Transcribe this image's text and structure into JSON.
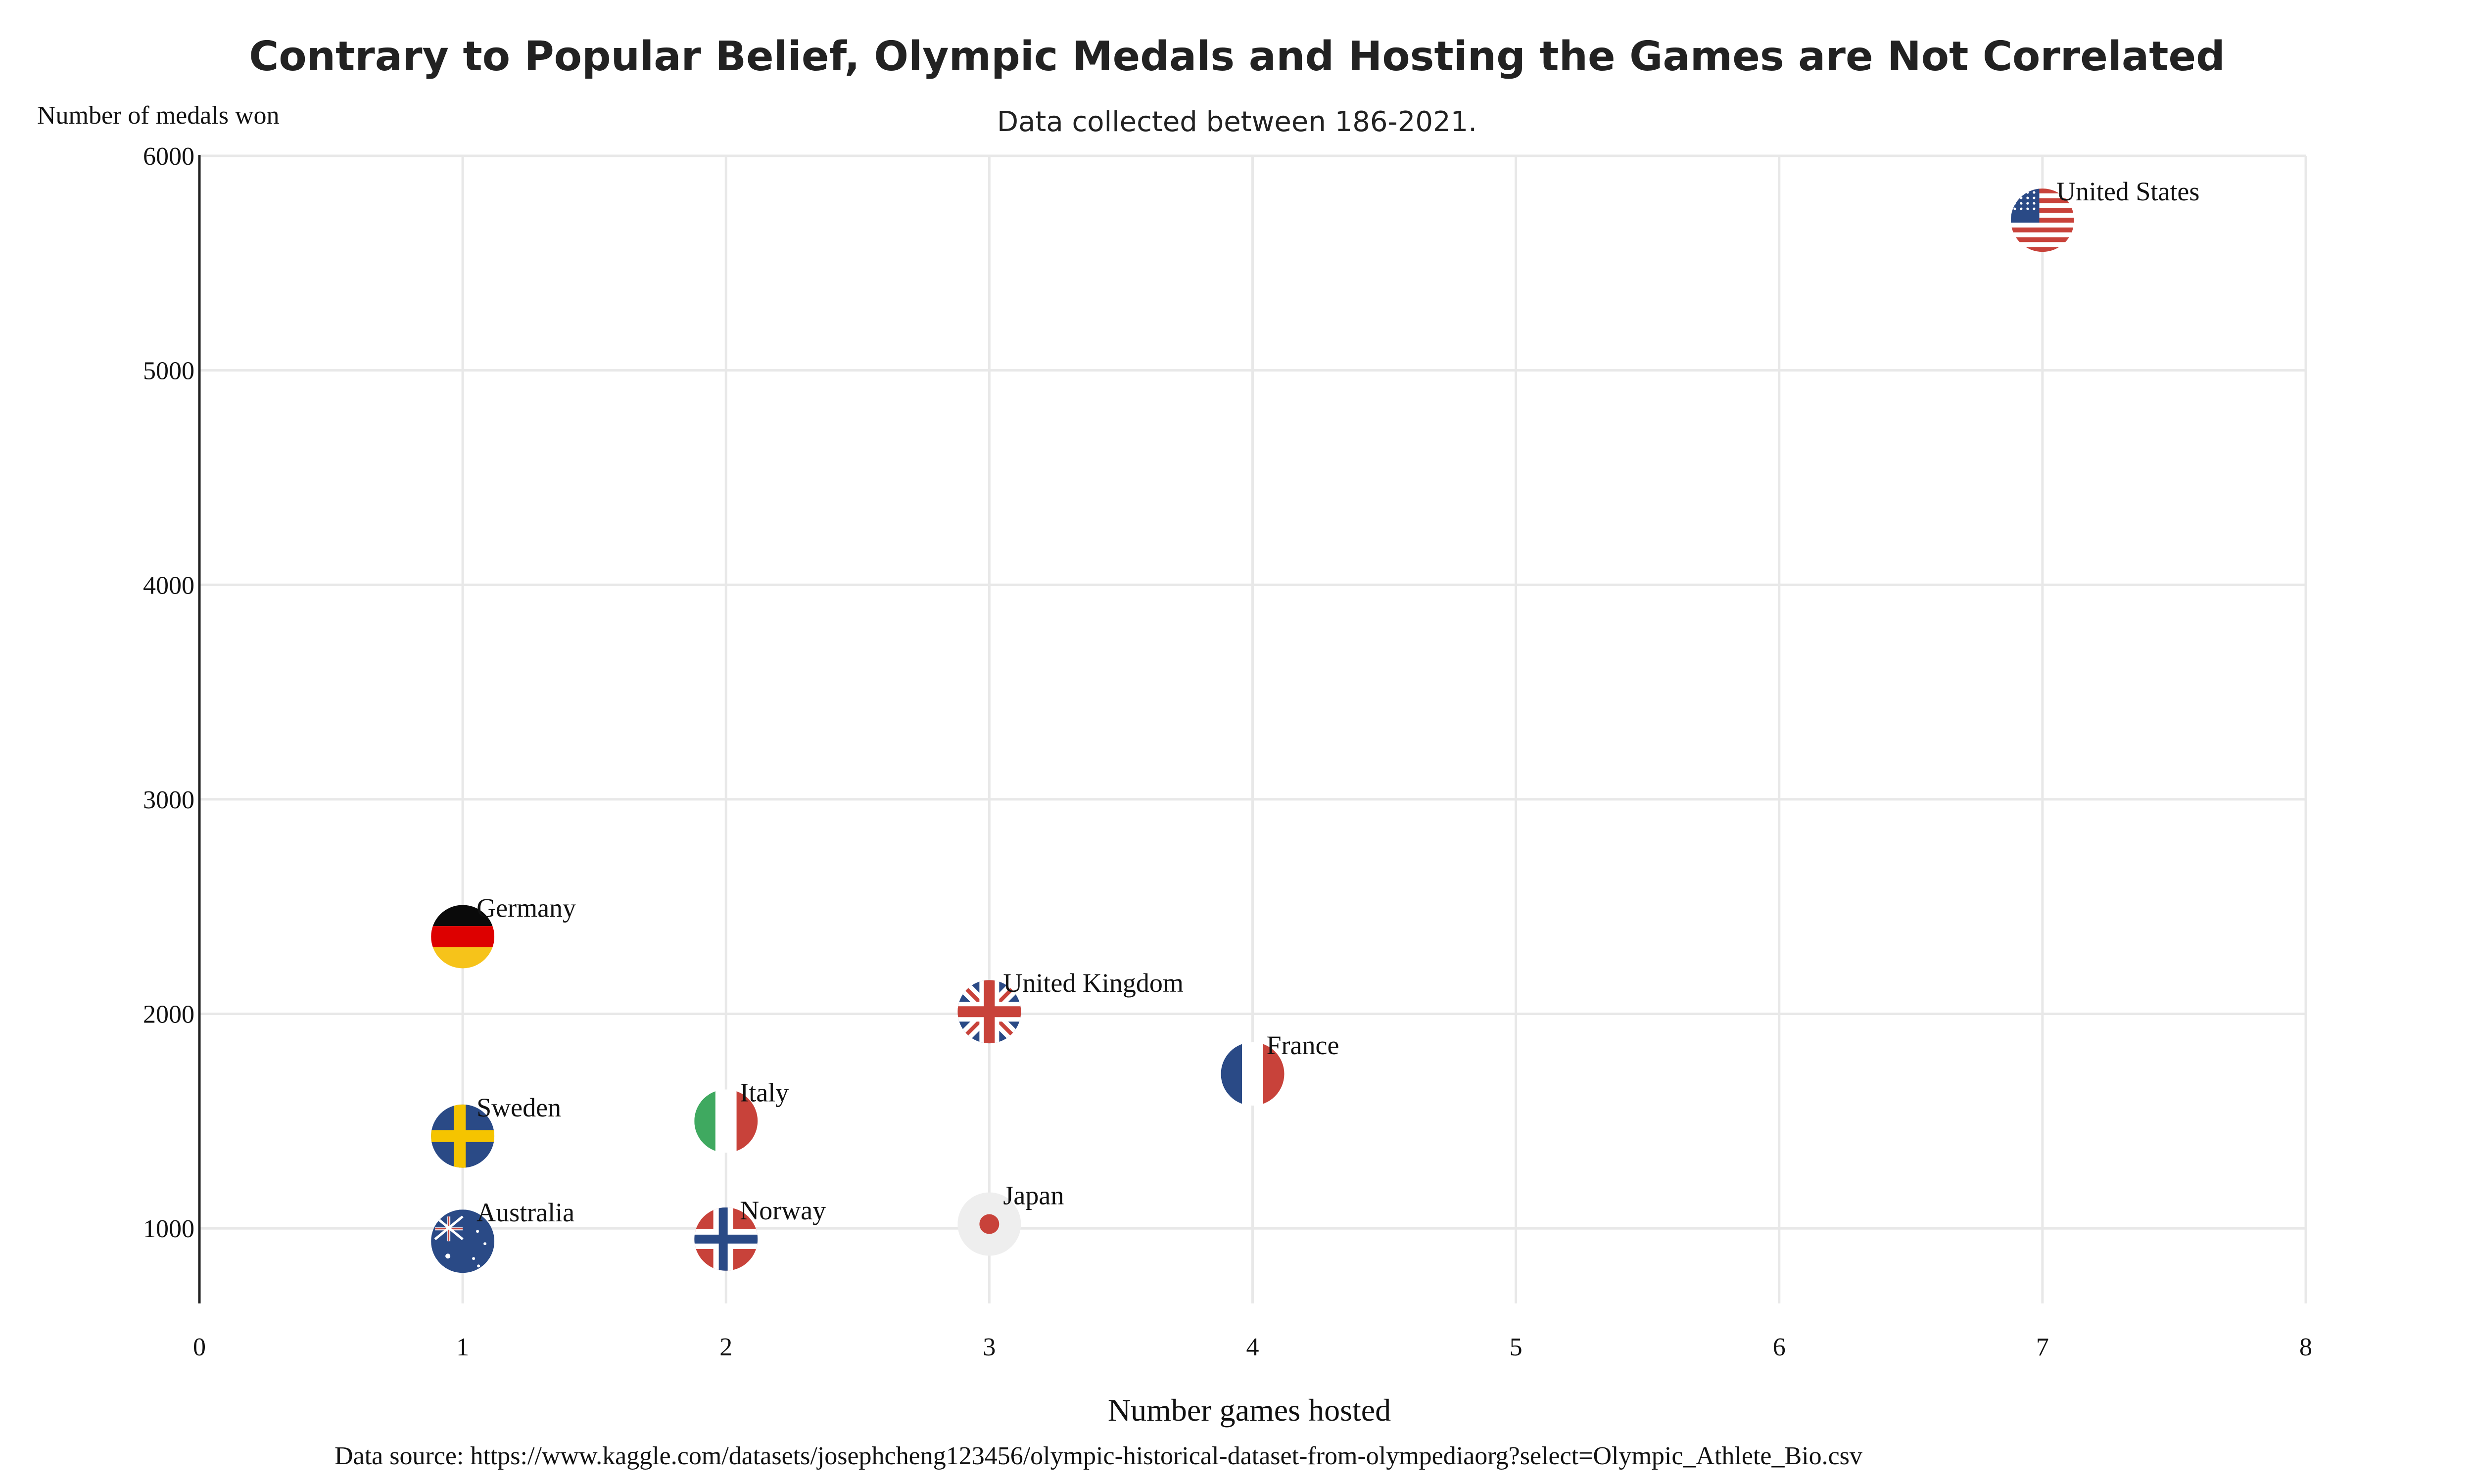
{
  "chart_data": {
    "type": "scatter",
    "title": "Contrary to Popular Belief, Olympic Medals and Hosting the Games are Not Correlated",
    "subtitle": "Data collected between 186-2021.",
    "xlabel": "Number games hosted",
    "ylabel": "Number of medals won",
    "source": "Data source: https://www.kaggle.com/datasets/josephcheng123456/olympic-historical-dataset-from-olympediaorg?select=Olympic_Athlete_Bio.csv",
    "xlim": [
      0,
      8
    ],
    "ylim": [
      650,
      6000
    ],
    "x_ticks": [
      0,
      1,
      2,
      3,
      4,
      5,
      6,
      7,
      8
    ],
    "y_ticks": [
      1000,
      2000,
      3000,
      4000,
      5000,
      6000
    ],
    "grid": true,
    "points": [
      {
        "label": "United States",
        "x": 7,
        "y": 5700,
        "marker": "us-flag-icon"
      },
      {
        "label": "Germany",
        "x": 1,
        "y": 2360,
        "marker": "germany-flag-icon"
      },
      {
        "label": "United Kingdom",
        "x": 3,
        "y": 2010,
        "marker": "uk-flag-icon"
      },
      {
        "label": "France",
        "x": 4,
        "y": 1720,
        "marker": "france-flag-icon"
      },
      {
        "label": "Italy",
        "x": 2,
        "y": 1500,
        "marker": "italy-flag-icon"
      },
      {
        "label": "Sweden",
        "x": 1,
        "y": 1430,
        "marker": "sweden-flag-icon"
      },
      {
        "label": "Japan",
        "x": 3,
        "y": 1020,
        "marker": "japan-flag-icon"
      },
      {
        "label": "Norway",
        "x": 2,
        "y": 950,
        "marker": "norway-flag-icon"
      },
      {
        "label": "Australia",
        "x": 1,
        "y": 940,
        "marker": "australia-flag-icon"
      }
    ],
    "colors": {
      "red": "#c8423a",
      "blue": "#2a4a86",
      "yellow": "#f5c400",
      "black": "#0a0a0a",
      "green": "#3fa960",
      "white": "#ffffff",
      "gold": "#f6c31a",
      "japan_bg": "#eeeeee"
    }
  }
}
